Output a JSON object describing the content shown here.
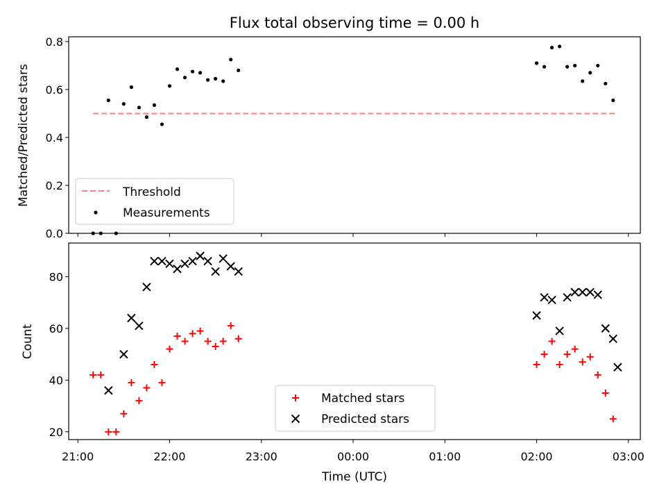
{
  "title": "Flux total observing time = 0.00 h",
  "chart_data": [
    {
      "type": "scatter",
      "ylabel": "Matched/Predicted stars",
      "xlabel": "",
      "xlim": [
        "21:00",
        "03:00"
      ],
      "ylim": [
        0,
        0.82
      ],
      "yticks": [
        0.0,
        0.2,
        0.4,
        0.6,
        0.8
      ],
      "ytick_labels": [
        "0.0",
        "0.2",
        "0.4",
        "0.6",
        "0.8"
      ],
      "legend_position": "lower-left",
      "threshold": {
        "name": "Threshold",
        "value": 0.5,
        "x_range": [
          "21:10",
          "22:47"
        ],
        "x_range2": [
          "01:59",
          "02:53"
        ],
        "color": "#ff7f7f",
        "style": "dashed"
      },
      "series": [
        {
          "name": "Measurements",
          "marker": "dot",
          "color": "#000000",
          "points": [
            [
              "21:10",
              0.0
            ],
            [
              "21:15",
              0.0
            ],
            [
              "21:25",
              0.0
            ],
            [
              "21:20",
              0.555
            ],
            [
              "21:30",
              0.54
            ],
            [
              "21:35",
              0.61
            ],
            [
              "21:40",
              0.525
            ],
            [
              "21:45",
              0.485
            ],
            [
              "21:50",
              0.535
            ],
            [
              "21:55",
              0.455
            ],
            [
              "22:00",
              0.615
            ],
            [
              "22:05",
              0.685
            ],
            [
              "22:10",
              0.65
            ],
            [
              "22:15",
              0.675
            ],
            [
              "22:20",
              0.67
            ],
            [
              "22:25",
              0.64
            ],
            [
              "22:30",
              0.645
            ],
            [
              "22:35",
              0.635
            ],
            [
              "22:40",
              0.725
            ],
            [
              "22:45",
              0.68
            ],
            [
              "02:00",
              0.71
            ],
            [
              "02:05",
              0.695
            ],
            [
              "02:10",
              0.775
            ],
            [
              "02:15",
              0.78
            ],
            [
              "02:20",
              0.695
            ],
            [
              "02:25",
              0.7
            ],
            [
              "02:30",
              0.635
            ],
            [
              "02:35",
              0.67
            ],
            [
              "02:40",
              0.7
            ],
            [
              "02:45",
              0.625
            ],
            [
              "02:50",
              0.555
            ]
          ]
        }
      ]
    },
    {
      "type": "scatter",
      "ylabel": "Count",
      "xlabel": "Time (UTC)",
      "xlim": [
        "21:00",
        "03:00"
      ],
      "ylim": [
        17,
        93
      ],
      "yticks": [
        20,
        40,
        60,
        80
      ],
      "ytick_labels": [
        "20",
        "40",
        "60",
        "80"
      ],
      "xticks": [
        "21:00",
        "22:00",
        "23:00",
        "00:00",
        "01:00",
        "02:00",
        "03:00"
      ],
      "legend_position": "lower-center",
      "series": [
        {
          "name": "Matched stars",
          "marker": "plus",
          "color": "#ff0000",
          "points": [
            [
              "21:10",
              42
            ],
            [
              "21:15",
              42
            ],
            [
              "21:20",
              20
            ],
            [
              "21:25",
              20
            ],
            [
              "21:30",
              27
            ],
            [
              "21:35",
              39
            ],
            [
              "21:40",
              32
            ],
            [
              "21:45",
              37
            ],
            [
              "21:50",
              46
            ],
            [
              "21:55",
              39
            ],
            [
              "22:00",
              52
            ],
            [
              "22:05",
              57
            ],
            [
              "22:10",
              55
            ],
            [
              "22:15",
              58
            ],
            [
              "22:20",
              59
            ],
            [
              "22:25",
              55
            ],
            [
              "22:30",
              53
            ],
            [
              "22:35",
              55
            ],
            [
              "22:40",
              61
            ],
            [
              "22:45",
              56
            ],
            [
              "02:00",
              46
            ],
            [
              "02:05",
              50
            ],
            [
              "02:10",
              55
            ],
            [
              "02:15",
              46
            ],
            [
              "02:20",
              50
            ],
            [
              "02:25",
              52
            ],
            [
              "02:30",
              47
            ],
            [
              "02:35",
              49
            ],
            [
              "02:40",
              42
            ],
            [
              "02:45",
              35
            ],
            [
              "02:50",
              25
            ]
          ]
        },
        {
          "name": "Predicted stars",
          "marker": "x",
          "color": "#000000",
          "points": [
            [
              "21:20",
              36
            ],
            [
              "21:30",
              50
            ],
            [
              "21:35",
              64
            ],
            [
              "21:40",
              61
            ],
            [
              "21:45",
              76
            ],
            [
              "21:50",
              86
            ],
            [
              "21:55",
              86
            ],
            [
              "22:00",
              85
            ],
            [
              "22:05",
              83
            ],
            [
              "22:10",
              85
            ],
            [
              "22:15",
              86
            ],
            [
              "22:20",
              88
            ],
            [
              "22:25",
              86
            ],
            [
              "22:30",
              82
            ],
            [
              "22:35",
              87
            ],
            [
              "22:40",
              84
            ],
            [
              "22:45",
              82
            ],
            [
              "02:00",
              65
            ],
            [
              "02:05",
              72
            ],
            [
              "02:10",
              71
            ],
            [
              "02:15",
              59
            ],
            [
              "02:20",
              72
            ],
            [
              "02:25",
              74
            ],
            [
              "02:30",
              74
            ],
            [
              "02:35",
              74
            ],
            [
              "02:40",
              73
            ],
            [
              "02:45",
              60
            ],
            [
              "02:50",
              56
            ],
            [
              "02:53",
              45
            ]
          ]
        }
      ]
    }
  ]
}
